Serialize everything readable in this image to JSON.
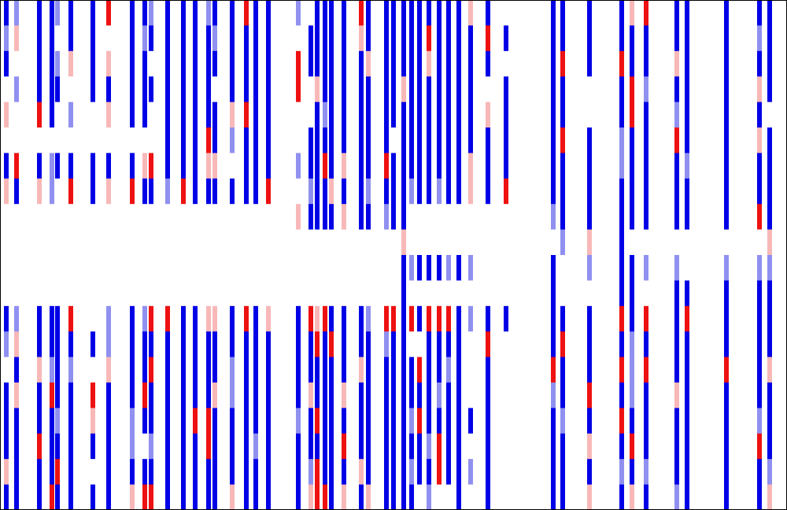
{
  "chart_data": {
    "type": "heatmap",
    "x": [
      5,
      18,
      47,
      63,
      70,
      87,
      115,
      135,
      165,
      181,
      189,
      210,
      230,
      245,
      262,
      270,
      292,
      310,
      322,
      338,
      376,
      392,
      400,
      410,
      418,
      434,
      456,
      465,
      488,
      497,
      510,
      520,
      530,
      542,
      555,
      567,
      580,
      595,
      617,
      640,
      700,
      712,
      746,
      787,
      800,
      818,
      857,
      870,
      920,
      962,
      975
    ],
    "xlim": [
      0,
      1000
    ],
    "vlim": [
      -2,
      2
    ],
    "colors": [
      "#0000e6",
      "#9090f0",
      "#ffffff",
      "#f8b8b8",
      "#ee1111"
    ],
    "values": [
      [
        -2,
        -1,
        -2,
        -2,
        -1,
        -2,
        -2,
        2,
        -2,
        -2,
        -1,
        -2,
        -2,
        -2,
        -1,
        -2,
        -2,
        2,
        -2,
        -2,
        -1,
        0,
        -2,
        -2,
        -2,
        -2,
        2,
        -2,
        -2,
        -2,
        -2,
        -2,
        -2,
        -2,
        -2,
        -2,
        -2,
        1,
        -2,
        0,
        -2,
        -2,
        -2,
        -2,
        1,
        2,
        -2,
        -2,
        -2,
        -2,
        -2
      ],
      [
        -1,
        1,
        -2,
        -2,
        0,
        -2,
        -2,
        0,
        -2,
        -1,
        -2,
        -2,
        -2,
        -2,
        -2,
        -1,
        -2,
        -2,
        -2,
        -2,
        0,
        -2,
        -2,
        -2,
        -2,
        -2,
        1,
        -2,
        -2,
        -2,
        -2,
        -2,
        -2,
        2,
        -2,
        -2,
        -2,
        -2,
        2,
        -2,
        -2,
        -2,
        -2,
        -2,
        -2,
        -2,
        -2,
        -2,
        -2,
        -1,
        -2
      ],
      [
        -2,
        0,
        -2,
        -2,
        -1,
        1,
        -2,
        1,
        -2,
        -2,
        0,
        -2,
        -2,
        -2,
        -2,
        -2,
        -2,
        -2,
        -2,
        -2,
        2,
        -2,
        -2,
        -2,
        -2,
        -2,
        -2,
        1,
        -2,
        -2,
        -2,
        -2,
        -2,
        1,
        -2,
        -2,
        -2,
        -2,
        -2,
        0,
        -2,
        2,
        -2,
        2,
        -2,
        -2,
        1,
        -2,
        -2,
        -2,
        -2
      ],
      [
        0,
        -1,
        -2,
        -2,
        -2,
        0,
        -2,
        -2,
        -2,
        -2,
        -2,
        -2,
        -2,
        -2,
        -2,
        0,
        -2,
        -2,
        -2,
        -2,
        2,
        0,
        1,
        -2,
        -2,
        -2,
        -2,
        -2,
        -2,
        -2,
        1,
        -2,
        -2,
        -2,
        -2,
        -2,
        -2,
        -2,
        0,
        -2,
        -2,
        -2,
        0,
        -2,
        2,
        -1,
        -2,
        -2,
        -2,
        1,
        -2
      ],
      [
        1,
        0,
        2,
        -2,
        0,
        -1,
        0,
        1,
        -2,
        -2,
        0,
        -2,
        -2,
        -2,
        -2,
        -2,
        1,
        2,
        -2,
        -2,
        0,
        0,
        -2,
        -1,
        -2,
        -2,
        -2,
        -2,
        -2,
        -2,
        -2,
        -2,
        -2,
        -2,
        -2,
        -2,
        -2,
        -2,
        1,
        -2,
        -2,
        -2,
        0,
        -2,
        2,
        -2,
        -1,
        -2,
        -2,
        -2,
        0
      ],
      [
        0,
        0,
        0,
        0,
        0,
        0,
        0,
        0,
        0,
        0,
        0,
        -2,
        -2,
        -2,
        2,
        -2,
        -1,
        -2,
        -2,
        -2,
        0,
        -2,
        -2,
        -2,
        -2,
        -2,
        -2,
        -2,
        -2,
        0,
        -2,
        -2,
        -2,
        -2,
        -2,
        -2,
        -2,
        -2,
        -2,
        -2,
        -2,
        2,
        -2,
        -1,
        -2,
        -2,
        2,
        -2,
        -2,
        1,
        -2
      ],
      [
        -2,
        2,
        -2,
        -1,
        -2,
        -2,
        -2,
        -2,
        -2,
        1,
        2,
        -2,
        -2,
        -2,
        1,
        1,
        0,
        -2,
        -2,
        -2,
        -1,
        -2,
        -2,
        2,
        -2,
        1,
        -2,
        -2,
        2,
        -2,
        -2,
        -2,
        -2,
        -2,
        -2,
        -2,
        -2,
        1,
        -2,
        -2,
        -2,
        -2,
        -2,
        -1,
        -2,
        -2,
        -2,
        -1,
        -2,
        -2,
        -2
      ],
      [
        1,
        -2,
        1,
        -1,
        0,
        2,
        -2,
        1,
        2,
        -2,
        -2,
        -1,
        2,
        -2,
        -2,
        -2,
        -2,
        -2,
        -2,
        2,
        0,
        -1,
        -2,
        -2,
        1,
        -2,
        -2,
        -1,
        -2,
        -2,
        -2,
        -1,
        -2,
        -2,
        -1,
        -2,
        -2,
        1,
        -2,
        2,
        -2,
        -2,
        -2,
        -2,
        -2,
        -2,
        -2,
        -2,
        -2,
        -2,
        -2
      ],
      [
        0,
        0,
        0,
        0,
        0,
        0,
        0,
        0,
        0,
        0,
        0,
        0,
        0,
        0,
        0,
        0,
        0,
        0,
        0,
        0,
        1,
        -2,
        -2,
        -2,
        -2,
        1,
        -2,
        -2,
        -1,
        -2,
        -2,
        0,
        0,
        0,
        0,
        0,
        0,
        0,
        0,
        0,
        -1,
        -2,
        -2,
        -2,
        -2,
        -2,
        -2,
        -2,
        -2,
        2,
        -2
      ],
      [
        0,
        0,
        0,
        0,
        0,
        0,
        0,
        0,
        0,
        0,
        0,
        0,
        0,
        0,
        0,
        0,
        0,
        0,
        0,
        0,
        0,
        0,
        0,
        0,
        0,
        0,
        0,
        0,
        0,
        0,
        1,
        0,
        0,
        0,
        0,
        0,
        0,
        0,
        0,
        0,
        0,
        -1,
        1,
        -2,
        0,
        0,
        0,
        0,
        0,
        0,
        1
      ],
      [
        0,
        0,
        0,
        0,
        0,
        0,
        0,
        0,
        0,
        0,
        0,
        0,
        0,
        0,
        0,
        0,
        0,
        0,
        0,
        0,
        0,
        0,
        0,
        0,
        0,
        0,
        0,
        0,
        0,
        0,
        -2,
        -1,
        -2,
        -2,
        -2,
        -1,
        -2,
        -1,
        0,
        0,
        -2,
        0,
        -1,
        -2,
        -2,
        -1,
        -1,
        0,
        -1,
        -1,
        -1
      ],
      [
        0,
        0,
        0,
        0,
        0,
        0,
        0,
        0,
        0,
        0,
        0,
        0,
        0,
        0,
        0,
        0,
        0,
        0,
        0,
        0,
        0,
        0,
        0,
        0,
        0,
        0,
        0,
        0,
        0,
        0,
        -2,
        0,
        0,
        0,
        0,
        0,
        0,
        0,
        0,
        0,
        -2,
        0,
        0,
        -2,
        -2,
        0,
        -2,
        -2,
        -2,
        -2,
        -2
      ],
      [
        -2,
        -1,
        -2,
        -2,
        -2,
        2,
        0,
        -1,
        -2,
        -1,
        2,
        2,
        -2,
        -2,
        1,
        1,
        -2,
        2,
        -2,
        1,
        -2,
        2,
        1,
        2,
        -2,
        -2,
        -2,
        -1,
        2,
        2,
        -2,
        2,
        -2,
        2,
        2,
        2,
        -2,
        -1,
        -2,
        -2,
        -2,
        -2,
        -2,
        2,
        -2,
        2,
        -2,
        2,
        -2,
        -2,
        -2
      ],
      [
        -1,
        1,
        -2,
        -2,
        -2,
        -2,
        -2,
        -1,
        -2,
        -2,
        -2,
        -2,
        -2,
        -2,
        -2,
        -2,
        -2,
        -2,
        -2,
        -2,
        -2,
        -2,
        2,
        -2,
        2,
        -2,
        -2,
        -2,
        -1,
        -2,
        -2,
        0,
        0,
        -2,
        -2,
        -2,
        -2,
        0,
        2,
        0,
        -2,
        2,
        -2,
        -2,
        -1,
        -2,
        -2,
        -2,
        -2,
        -2,
        -2
      ],
      [
        0,
        -2,
        1,
        -1,
        -2,
        -1,
        0,
        1,
        -2,
        -2,
        2,
        -2,
        -2,
        -2,
        -2,
        -2,
        -1,
        -2,
        -2,
        -2,
        -2,
        -2,
        -2,
        -2,
        -2,
        -2,
        1,
        -2,
        -2,
        -2,
        -2,
        -2,
        2,
        -2,
        -2,
        -1,
        -2,
        0,
        -2,
        0,
        2,
        -2,
        -2,
        2,
        -1,
        2,
        -2,
        -2,
        2,
        -2,
        1
      ],
      [
        -2,
        1,
        -2,
        2,
        -2,
        -2,
        2,
        -2,
        -2,
        2,
        -2,
        -2,
        -2,
        -2,
        -2,
        1,
        -1,
        -2,
        -2,
        -2,
        -2,
        1,
        -2,
        -2,
        -2,
        1,
        -2,
        -2,
        -2,
        -2,
        -2,
        -2,
        -2,
        -2,
        -1,
        -2,
        -2,
        0,
        -2,
        0,
        -1,
        -2,
        2,
        -2,
        -1,
        -2,
        1,
        -2,
        -2,
        -2,
        -2
      ],
      [
        -2,
        -2,
        -2,
        -2,
        -1,
        -2,
        1,
        -2,
        -1,
        -2,
        -2,
        -2,
        -2,
        2,
        2,
        -2,
        -2,
        -2,
        -2,
        -2,
        -1,
        -2,
        2,
        -2,
        -2,
        -2,
        -2,
        -2,
        -2,
        -2,
        -2,
        -1,
        2,
        -2,
        -2,
        -2,
        -2,
        -2,
        -2,
        0,
        -2,
        -1,
        -2,
        2,
        -2,
        -2,
        -2,
        -2,
        -2,
        -1,
        -2
      ],
      [
        -2,
        -2,
        2,
        -2,
        -2,
        -2,
        -2,
        -2,
        -1,
        0,
        -1,
        -2,
        -2,
        -2,
        2,
        -2,
        -2,
        -2,
        -1,
        -2,
        -2,
        -2,
        -2,
        -2,
        -2,
        2,
        -2,
        -2,
        -2,
        -2,
        -2,
        -2,
        -2,
        -1,
        2,
        -2,
        -2,
        0,
        -2,
        0,
        -2,
        -2,
        1,
        -2,
        2,
        -2,
        -2,
        -2,
        -2,
        2,
        -2
      ],
      [
        1,
        -2,
        -2,
        -2,
        2,
        -2,
        0,
        -2,
        -2,
        -2,
        -2,
        -2,
        -2,
        -2,
        -2,
        -2,
        -2,
        -2,
        -2,
        -2,
        -2,
        -1,
        2,
        -2,
        -2,
        -2,
        1,
        -2,
        -2,
        -2,
        -2,
        -1,
        -2,
        -2,
        2,
        -2,
        -2,
        -1,
        -2,
        0,
        -2,
        -2,
        -2,
        -1,
        -2,
        -1,
        -2,
        -2,
        -2,
        -2,
        -1
      ],
      [
        -2,
        -2,
        -2,
        2,
        -2,
        -2,
        -2,
        -2,
        1,
        2,
        2,
        -2,
        -2,
        -2,
        -2,
        -2,
        1,
        -2,
        -2,
        -2,
        -2,
        1,
        2,
        2,
        -2,
        1,
        -2,
        1,
        -2,
        -2,
        -2,
        -2,
        0,
        -1,
        0,
        0,
        -2,
        0,
        -2,
        0,
        -2,
        -2,
        1,
        -2,
        1,
        -2,
        -1,
        -2,
        -2,
        -2,
        1
      ]
    ]
  }
}
